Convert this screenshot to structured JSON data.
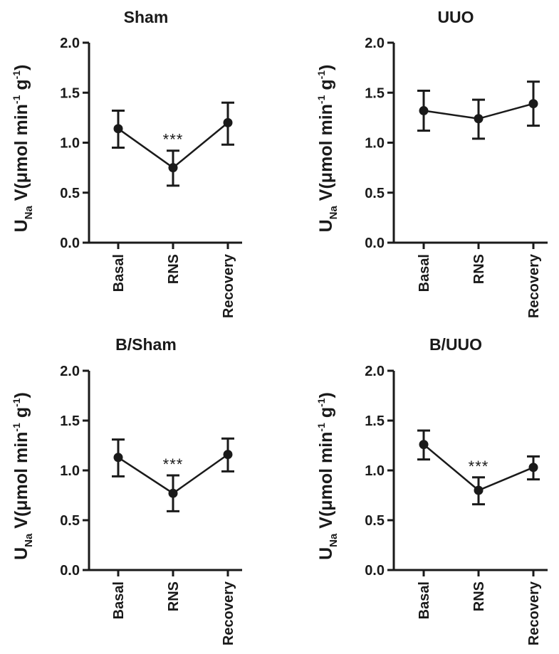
{
  "chart_data": [
    {
      "type": "line",
      "title": "Sham",
      "categories": [
        "Basal",
        "RNS",
        "Recovery"
      ],
      "values": [
        1.14,
        0.75,
        1.2
      ],
      "error_low": [
        0.95,
        0.57,
        0.98
      ],
      "error_high": [
        1.32,
        0.92,
        1.4
      ],
      "significance": [
        "",
        "***",
        ""
      ],
      "ylim": [
        0,
        2.0
      ],
      "yticks": [
        "0.0",
        "0.5",
        "1.0",
        "1.5",
        "2.0"
      ],
      "ylabel": {
        "main": "U",
        "sub": "Na",
        "v": " V(",
        "mu": "μ",
        "mol": "mol min",
        "sup1": "-1",
        "g": " g",
        "sup2": "-1",
        "close": ")"
      },
      "color": "#1a1a1a"
    },
    {
      "type": "line",
      "title": "UUO",
      "categories": [
        "Basal",
        "RNS",
        "Recovery"
      ],
      "values": [
        1.32,
        1.24,
        1.39
      ],
      "error_low": [
        1.12,
        1.04,
        1.17
      ],
      "error_high": [
        1.52,
        1.43,
        1.61
      ],
      "significance": [
        "",
        "",
        ""
      ],
      "ylim": [
        0,
        2.0
      ],
      "yticks": [
        "0.0",
        "0.5",
        "1.0",
        "1.5",
        "2.0"
      ],
      "ylabel": {
        "main": "U",
        "sub": "Na",
        "v": " V(",
        "mu": "μ",
        "mol": "mol min",
        "sup1": "-1",
        "g": " g",
        "sup2": "-1",
        "close": ")"
      },
      "color": "#1a1a1a"
    },
    {
      "type": "line",
      "title": "B/Sham",
      "categories": [
        "Basal",
        "RNS",
        "Recovery"
      ],
      "values": [
        1.13,
        0.77,
        1.16
      ],
      "error_low": [
        0.94,
        0.59,
        0.99
      ],
      "error_high": [
        1.31,
        0.95,
        1.32
      ],
      "significance": [
        "",
        "***",
        ""
      ],
      "ylim": [
        0,
        2.0
      ],
      "yticks": [
        "0.0",
        "0.5",
        "1.0",
        "1.5",
        "2.0"
      ],
      "ylabel": {
        "main": "U",
        "sub": "Na",
        "v": " V(",
        "mu": "μ",
        "mol": "mol min",
        "sup1": "-1",
        "g": " g",
        "sup2": "-1",
        "close": ")"
      },
      "color": "#1a1a1a"
    },
    {
      "type": "line",
      "title": "B/UUO",
      "categories": [
        "Basal",
        "RNS",
        "Recovery"
      ],
      "values": [
        1.26,
        0.8,
        1.03
      ],
      "error_low": [
        1.11,
        0.66,
        0.91
      ],
      "error_high": [
        1.4,
        0.93,
        1.14
      ],
      "significance": [
        "",
        "***",
        ""
      ],
      "ylim": [
        0,
        2.0
      ],
      "yticks": [
        "0.0",
        "0.5",
        "1.0",
        "1.5",
        "2.0"
      ],
      "ylabel": {
        "main": "U",
        "sub": "Na",
        "v": " V(",
        "mu": "μ",
        "mol": "mol min",
        "sup1": "-1",
        "g": " g",
        "sup2": "-1",
        "close": ")"
      },
      "color": "#1a1a1a"
    }
  ]
}
